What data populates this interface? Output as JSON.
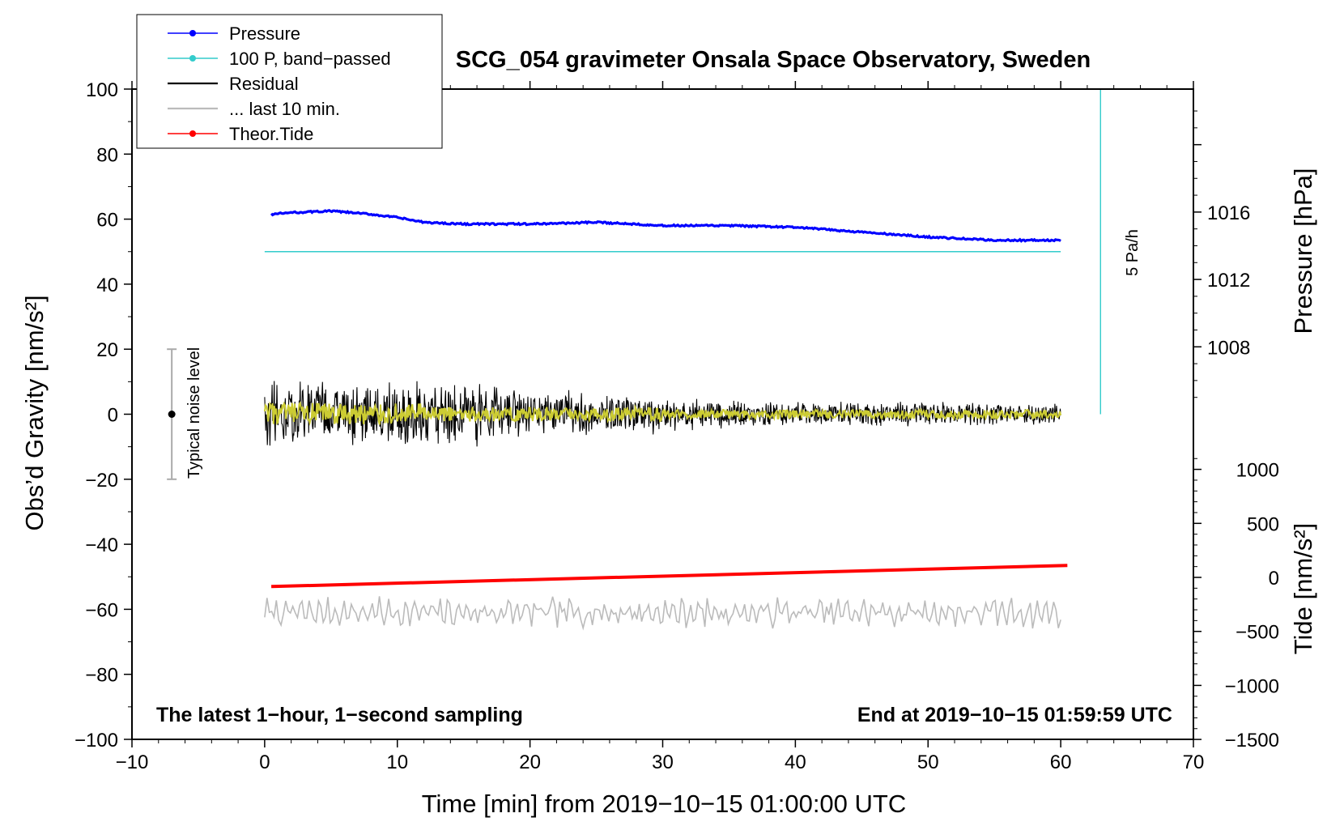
{
  "chart_data": {
    "type": "line",
    "title": "SCG_054 gravimeter Onsala Space Observatory, Sweden",
    "xlabel": "Time [min] from 2019−10−15 01:00:00 UTC",
    "ylabel_left": "Obs’d Gravity [nm/s²]",
    "ylabel_pressure": "Pressure [hPa]",
    "ylabel_tide": "Tide [nm/s²]",
    "xlim": [
      -10,
      70
    ],
    "ylim_left": [
      -100,
      100
    ],
    "x_ticks": [
      "−10",
      "0",
      "10",
      "20",
      "30",
      "40",
      "50",
      "60",
      "70"
    ],
    "y_ticks_left": [
      "100",
      "80",
      "60",
      "40",
      "20",
      "0",
      "−20",
      "−40",
      "−60",
      "−80",
      "−100"
    ],
    "y_ticks_pressure": [
      "1016",
      "1012",
      "1008"
    ],
    "y_ticks_tide": [
      "1000",
      "500",
      "0",
      "−500",
      "−1000",
      "−1500"
    ],
    "annotations": {
      "bottom_left": "The latest 1−hour, 1−second sampling",
      "bottom_right": "End at 2019−10−15 01:59:59 UTC",
      "noise_label": "Typical noise level",
      "rate_label": "5 Pa/h"
    },
    "legend": [
      {
        "label": "Pressure",
        "color": "#0000ff",
        "marker": true
      },
      {
        "label": "100 P, band−passed",
        "color": "#33cccc",
        "marker": true
      },
      {
        "label": "Residual",
        "color": "#000000",
        "marker": false
      },
      {
        "label": "... last 10 min.",
        "color": "#bbbbbb",
        "marker": false
      },
      {
        "label": "Theor.Tide",
        "color": "#ff0000",
        "marker": true
      }
    ],
    "series": [
      {
        "name": "Pressure",
        "color": "#0000ff",
        "axis": "left_equivalent",
        "x": [
          0.5,
          2,
          5,
          8,
          10,
          12,
          15,
          20,
          25,
          28,
          30,
          35,
          40,
          45,
          50,
          55,
          60
        ],
        "y": [
          61.5,
          62,
          62.5,
          61.5,
          60.5,
          59,
          58.5,
          58.5,
          59,
          58.5,
          58,
          58,
          57.5,
          56,
          54.5,
          53.5,
          53.5
        ]
      },
      {
        "name": "100 P, band−passed",
        "color": "#33cccc",
        "axis": "left_equivalent",
        "x": [
          0,
          60
        ],
        "y": [
          50,
          50
        ]
      },
      {
        "name": "Residual",
        "color": "#000000",
        "axis": "left",
        "x_range": [
          0,
          60
        ],
        "envelope": {
          "x": [
            0,
            5,
            10,
            13,
            20,
            28,
            32,
            40,
            50,
            60
          ],
          "amp": [
            12,
            12,
            11,
            12,
            8,
            7,
            5,
            4,
            4,
            3.5
          ]
        }
      },
      {
        "name": "Residual (smoothed)",
        "color": "#cccc33",
        "axis": "left",
        "x_range": [
          0,
          60
        ],
        "amp": 2.5
      },
      {
        "name": "... last 10 min.",
        "color": "#bbbbbb",
        "axis": "left",
        "x_range": [
          0,
          60
        ],
        "base": -61,
        "amp": 4
      },
      {
        "name": "Theor.Tide",
        "color": "#ff0000",
        "axis": "left_equivalent",
        "x": [
          0.5,
          60.5
        ],
        "y": [
          -53,
          -46.5
        ]
      }
    ],
    "noise_bar": {
      "x": -7,
      "y": 0,
      "ylow": -20,
      "yhigh": 20
    },
    "rate_marker": {
      "x": 63,
      "y0": 0,
      "y1": 100
    }
  }
}
